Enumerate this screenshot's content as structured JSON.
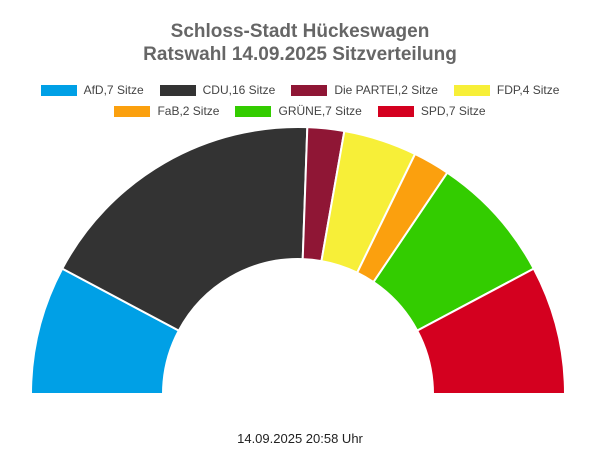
{
  "chart_data": {
    "type": "pie",
    "variant": "parliament-semicircle",
    "title": "Schloss-Stadt Hückeswagen",
    "subtitle": "Ratswahl 14.09.2025 Sitzverteilung",
    "legend_position": "top",
    "series": [
      {
        "name": "AfD",
        "label": "AfD,7 Sitze",
        "value": 7,
        "color": "#00a0e6"
      },
      {
        "name": "CDU",
        "label": "CDU,16 Sitze",
        "value": 16,
        "color": "#333333"
      },
      {
        "name": "Die PARTEI",
        "label": "Die PARTEI,2 Sitze",
        "value": 2,
        "color": "#8f1635"
      },
      {
        "name": "FDP",
        "label": "FDP,4 Sitze",
        "value": 4,
        "color": "#f7ef38"
      },
      {
        "name": "FaB",
        "label": "FaB,2 Sitze",
        "value": 2,
        "color": "#fba00e"
      },
      {
        "name": "GRÜNE",
        "label": "GRÜNE,7 Sitze",
        "value": 7,
        "color": "#33cc00"
      },
      {
        "name": "SPD",
        "label": "SPD,7 Sitze",
        "value": 7,
        "color": "#d4001f"
      }
    ],
    "timestamp": "14.09.2025 20:58 Uhr"
  }
}
